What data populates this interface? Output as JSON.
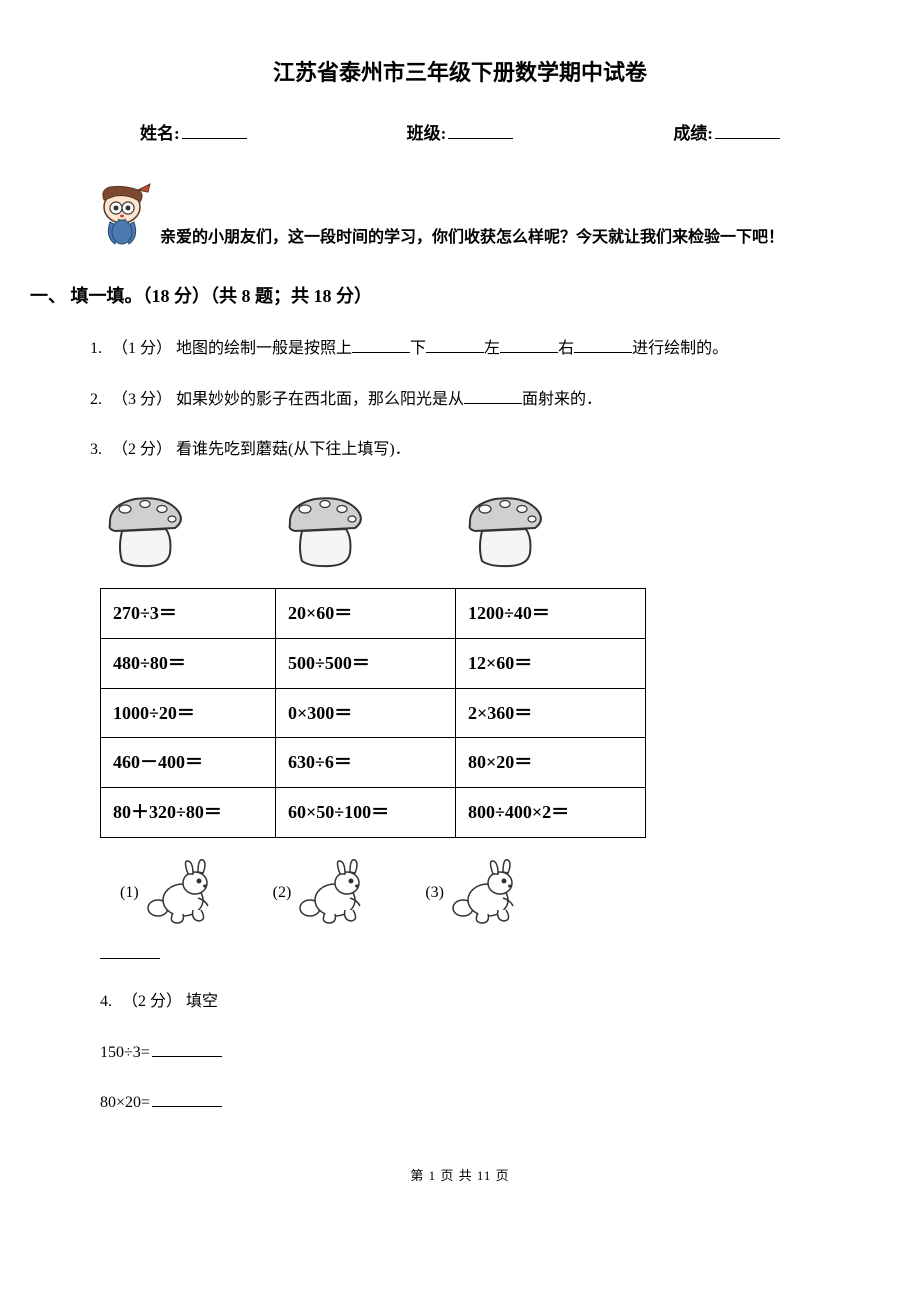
{
  "title": "江苏省泰州市三年级下册数学期中试卷",
  "info": {
    "name_label": "姓名:",
    "class_label": "班级:",
    "score_label": "成绩:"
  },
  "intro": "亲爱的小朋友们，这一段时间的学习，你们收获怎么样呢？今天就让我们来检验一下吧！",
  "section1": {
    "header": "一、 填一填。（18 分）（共 8 题；共 18 分）",
    "q1": {
      "num": "1.",
      "pts": "（1 分）",
      "pre": "地图的绘制一般是按照上",
      "mid1": "下",
      "mid2": "左",
      "mid3": "右",
      "post": "进行绘制的。"
    },
    "q2": {
      "num": "2.",
      "pts": "（3 分）",
      "pre": "如果妙妙的影子在西北面，那么阳光是从",
      "post": "面射来的．"
    },
    "q3": {
      "num": "3.",
      "pts": "（2 分）",
      "text": "看谁先吃到蘑菇(从下往上填写)．"
    },
    "calc_table": {
      "rows": [
        [
          "270÷3＝",
          "20×60＝",
          "1200÷40＝"
        ],
        [
          "480÷80＝",
          "500÷500＝",
          "12×60＝"
        ],
        [
          "1000÷20＝",
          "0×300＝",
          "2×360＝"
        ],
        [
          "460－400＝",
          "630÷6＝",
          "80×20＝"
        ],
        [
          "80＋320÷80＝",
          "60×50÷100＝",
          "800÷400×2＝"
        ]
      ]
    },
    "rabbits": [
      "(1)",
      "(2)",
      "(3)"
    ],
    "q4": {
      "num": "4.",
      "pts": "（2 分）",
      "text": "填空",
      "expr1": "150÷3=",
      "expr2": "80×20="
    }
  },
  "footer": "第 1 页 共 11 页"
}
